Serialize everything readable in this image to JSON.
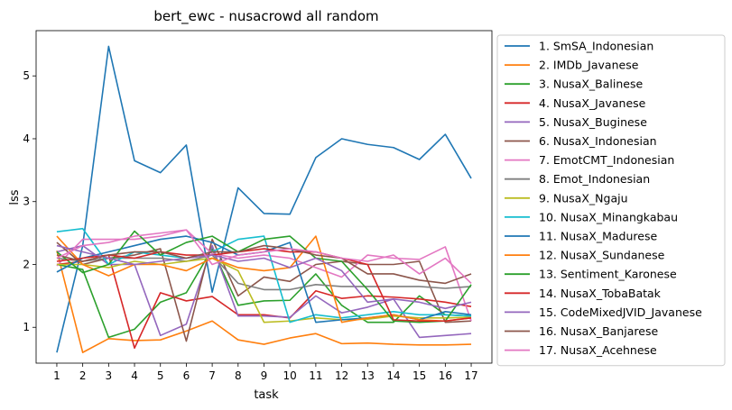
{
  "chart_data": {
    "type": "line",
    "title": "bert_ewc - nusacrowd all random",
    "xlabel": "task",
    "ylabel": "lss",
    "x": [
      1,
      2,
      3,
      4,
      5,
      6,
      7,
      8,
      9,
      10,
      11,
      12,
      13,
      14,
      15,
      16,
      17
    ],
    "x_ticks": [
      "1",
      "2",
      "3",
      "4",
      "5",
      "6",
      "7",
      "8",
      "9",
      "10",
      "11",
      "12",
      "13",
      "14",
      "15",
      "16",
      "17"
    ],
    "y_ticks": [
      "1",
      "2",
      "3",
      "4",
      "5"
    ],
    "ylim": [
      0.43,
      5.72
    ],
    "xlim": [
      0.2,
      17.8
    ],
    "legend_position": "outside-right",
    "series": [
      {
        "name": "1. SmSA_Indonesian",
        "color": "#1f77b4",
        "values": [
          0.6,
          2.3,
          5.47,
          3.65,
          3.46,
          3.9,
          1.56,
          3.22,
          2.81,
          2.8,
          3.7,
          4.0,
          3.91,
          3.86,
          3.67,
          4.07,
          3.37
        ]
      },
      {
        "name": "2. IMDb_Javanese",
        "color": "#ff7f0e",
        "values": [
          2.22,
          0.6,
          0.82,
          0.79,
          0.8,
          0.94,
          1.1,
          0.8,
          0.73,
          0.83,
          0.9,
          0.74,
          0.75,
          0.73,
          0.72,
          0.72,
          0.73
        ]
      },
      {
        "name": "3. NusaX_Balinese",
        "color": "#2ca02c",
        "values": [
          2.0,
          1.92,
          0.84,
          0.97,
          1.4,
          1.55,
          2.25,
          1.35,
          1.42,
          1.43,
          1.85,
          1.35,
          1.08,
          1.08,
          1.5,
          1.2,
          1.18
        ]
      },
      {
        "name": "4. NusaX_Javanese",
        "color": "#d62728",
        "values": [
          2.0,
          2.05,
          2.15,
          0.67,
          1.55,
          1.42,
          1.49,
          1.2,
          1.2,
          1.15,
          1.58,
          1.46,
          1.5,
          1.48,
          1.45,
          1.4,
          1.33
        ]
      },
      {
        "name": "5. NusaX_Buginese",
        "color": "#9467bd",
        "values": [
          2.2,
          2.3,
          2.0,
          2.0,
          0.87,
          1.05,
          2.3,
          1.18,
          1.18,
          1.16,
          1.5,
          1.23,
          1.32,
          1.45,
          0.84,
          0.87,
          0.9
        ]
      },
      {
        "name": "6. NusaX_Indonesian",
        "color": "#8c564b",
        "values": [
          2.35,
          2.0,
          2.1,
          2.15,
          2.25,
          0.78,
          2.4,
          1.5,
          1.8,
          1.73,
          2.0,
          2.05,
          2.0,
          2.0,
          2.05,
          1.08,
          1.1
        ]
      },
      {
        "name": "7. EmotCMT_Indonesian",
        "color": "#e377c2",
        "values": [
          1.98,
          2.4,
          2.4,
          2.4,
          2.45,
          2.55,
          2.17,
          2.1,
          2.15,
          2.1,
          1.95,
          1.8,
          2.15,
          2.1,
          2.08,
          2.28,
          1.1
        ]
      },
      {
        "name": "8. Emot_Indonesian",
        "color": "#7f7f7f",
        "values": [
          2.1,
          2.05,
          2.1,
          2.1,
          2.1,
          2.05,
          2.15,
          1.7,
          1.6,
          1.6,
          1.68,
          1.65,
          1.65,
          1.65,
          1.65,
          1.62,
          1.65
        ]
      },
      {
        "name": "9. NusaX_Ngaju",
        "color": "#bcbd22",
        "values": [
          2.0,
          2.0,
          1.95,
          2.05,
          2.0,
          2.05,
          2.1,
          1.9,
          1.08,
          1.1,
          1.15,
          1.12,
          1.13,
          1.18,
          1.15,
          1.15,
          1.16
        ]
      },
      {
        "name": "10. NusaX_Minangkabau",
        "color": "#17becf",
        "values": [
          2.52,
          2.57,
          2.0,
          2.2,
          2.15,
          2.1,
          2.2,
          2.4,
          2.45,
          1.08,
          1.2,
          1.15,
          1.2,
          1.25,
          1.2,
          1.2,
          1.18
        ]
      },
      {
        "name": "11. NusaX_Madurese",
        "color": "#1f77b4",
        "values": [
          1.88,
          2.1,
          2.2,
          2.3,
          2.4,
          2.45,
          2.35,
          2.15,
          2.2,
          2.35,
          1.08,
          1.12,
          1.15,
          1.2,
          1.12,
          1.25,
          1.2
        ]
      },
      {
        "name": "12. NusaX_Sundanese",
        "color": "#ff7f0e",
        "values": [
          2.45,
          2.0,
          1.82,
          2.0,
          2.0,
          1.9,
          2.1,
          1.95,
          1.9,
          1.95,
          2.45,
          1.08,
          1.15,
          1.2,
          1.12,
          1.1,
          1.15
        ]
      },
      {
        "name": "13. Sentiment_Karonese",
        "color": "#2ca02c",
        "values": [
          2.2,
          1.87,
          2.0,
          2.53,
          2.15,
          2.35,
          2.45,
          2.2,
          2.4,
          2.45,
          2.1,
          2.05,
          1.6,
          1.1,
          1.08,
          1.1,
          1.68
        ]
      },
      {
        "name": "14. NusaX_TobaBatak",
        "color": "#d62728",
        "values": [
          2.05,
          2.1,
          2.15,
          2.1,
          2.2,
          2.15,
          2.15,
          2.2,
          2.25,
          2.2,
          2.2,
          2.1,
          2.0,
          1.12,
          1.1,
          1.1,
          1.15
        ]
      },
      {
        "name": "15. CodeMixedJVID_Javanese",
        "color": "#9467bd",
        "values": [
          2.3,
          2.2,
          2.1,
          2.0,
          2.05,
          2.1,
          2.15,
          2.05,
          2.1,
          1.95,
          2.1,
          1.9,
          1.4,
          1.45,
          1.4,
          1.3,
          1.4
        ]
      },
      {
        "name": "16. NusaX_Banjarese",
        "color": "#8c564b",
        "values": [
          2.15,
          2.05,
          2.15,
          2.2,
          2.2,
          2.1,
          2.2,
          2.2,
          2.3,
          2.25,
          2.15,
          2.1,
          1.85,
          1.85,
          1.75,
          1.7,
          1.85
        ]
      },
      {
        "name": "17. NusaX_Acehnese",
        "color": "#e377c2",
        "values": [
          2.1,
          2.3,
          2.35,
          2.45,
          2.5,
          2.55,
          2.0,
          2.15,
          2.2,
          2.25,
          2.2,
          2.1,
          2.05,
          2.15,
          1.85,
          2.1,
          1.7
        ]
      }
    ]
  }
}
